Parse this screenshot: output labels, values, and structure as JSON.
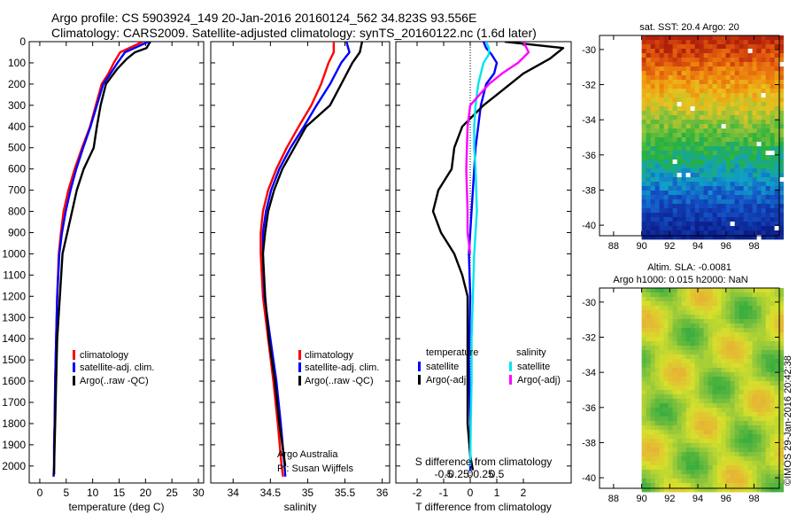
{
  "header": {
    "line1": "Argo profile: CS 5903924_149 20-Jan-2016 20160124_562 34.823S 93.556E",
    "line2": "Climatology: CARS2009. Satellite-adjusted climatology: synTS_20160122.nc (1.6d later)"
  },
  "credit": "©IMOS 29-Jan-2016 20:42:38",
  "colors": {
    "climatology": "#ff0000",
    "satellite": "#0000ff",
    "argo": "#000000",
    "satellite_salinity": "#00e5ee",
    "argo_salinity_diff": "#ff00ff"
  },
  "chart_data": [
    {
      "type": "line",
      "xlabel": "temperature (deg C)",
      "ylabel": "",
      "xlim": [
        -2,
        31
      ],
      "ylim": [
        2080,
        0
      ],
      "y_inverted": true,
      "xticks": [
        0,
        5,
        10,
        15,
        20,
        25,
        30
      ],
      "yticks": [
        0,
        100,
        200,
        300,
        400,
        500,
        600,
        700,
        800,
        900,
        1000,
        1100,
        1200,
        1300,
        1400,
        1500,
        1600,
        1700,
        1800,
        1900,
        2000
      ],
      "legend_position": "lower-center",
      "series": [
        {
          "name": "climatology",
          "color": "#ff0000",
          "x": [
            19.5,
            15.2,
            14.0,
            13.0,
            11.7,
            10.6,
            9.5,
            8.0,
            6.6,
            5.4,
            4.5,
            4.0,
            3.6,
            3.3,
            3.1,
            2.9,
            2.8,
            2.7,
            2.7,
            2.6
          ],
          "y": [
            0,
            50,
            100,
            150,
            200,
            300,
            400,
            500,
            600,
            700,
            800,
            900,
            1000,
            1200,
            1400,
            1600,
            1800,
            1900,
            2000,
            2050
          ]
        },
        {
          "name": "satellite-adj. clim.",
          "color": "#0000ff",
          "x": [
            20.6,
            16.1,
            14.7,
            13.4,
            12.0,
            10.8,
            9.6,
            8.2,
            6.9,
            5.8,
            4.9,
            4.2,
            3.7,
            3.3,
            3.1,
            2.9,
            2.8,
            2.7,
            2.7,
            2.6
          ],
          "y": [
            0,
            50,
            100,
            150,
            200,
            300,
            400,
            500,
            600,
            700,
            800,
            900,
            1000,
            1200,
            1400,
            1600,
            1800,
            1900,
            2000,
            2050
          ]
        },
        {
          "name": "Argo(..raw -QC)",
          "color": "#000000",
          "x": [
            20.9,
            20.2,
            18.0,
            16.5,
            14.6,
            12.5,
            11.5,
            10.8,
            10.2,
            8.3,
            7.0,
            6.1,
            5.2,
            4.3,
            3.8,
            3.3,
            3.1,
            2.9,
            2.8,
            2.7,
            2.7
          ],
          "y": [
            0,
            30,
            50,
            80,
            130,
            200,
            300,
            400,
            500,
            600,
            700,
            800,
            900,
            1000,
            1200,
            1400,
            1600,
            1800,
            1900,
            2000,
            2040
          ]
        }
      ]
    },
    {
      "type": "line",
      "xlabel": "salinity",
      "ylabel": "",
      "xlim": [
        33.7,
        36.1
      ],
      "ylim": [
        2080,
        0
      ],
      "y_inverted": true,
      "xticks": [
        34,
        34.5,
        35,
        35.5,
        36
      ],
      "yticks": [
        0,
        100,
        200,
        300,
        400,
        500,
        600,
        700,
        800,
        900,
        1000,
        1100,
        1200,
        1300,
        1400,
        1500,
        1600,
        1700,
        1800,
        1900,
        2000
      ],
      "legend_position": "lower-right",
      "annotation": [
        "Argo Australia",
        "PI: Susan Wijffels"
      ],
      "series": [
        {
          "name": "climatology",
          "color": "#ff0000",
          "x": [
            35.35,
            35.35,
            35.28,
            35.18,
            35.05,
            34.88,
            34.72,
            34.58,
            34.47,
            34.4,
            34.37,
            34.37,
            34.4,
            34.47,
            34.54,
            34.6,
            34.65,
            34.67
          ],
          "y": [
            0,
            50,
            100,
            200,
            300,
            400,
            500,
            600,
            700,
            800,
            900,
            1000,
            1200,
            1400,
            1600,
            1800,
            2000,
            2050
          ]
        },
        {
          "name": "satellite-adj. clim.",
          "color": "#0000ff",
          "x": [
            35.52,
            35.56,
            35.45,
            35.3,
            35.12,
            34.95,
            34.77,
            34.62,
            34.51,
            34.44,
            34.4,
            34.4,
            34.42,
            34.5,
            34.58,
            34.64,
            34.69,
            34.7
          ],
          "y": [
            0,
            50,
            100,
            200,
            300,
            400,
            500,
            600,
            700,
            800,
            900,
            1000,
            1200,
            1400,
            1600,
            1800,
            2000,
            2050
          ]
        },
        {
          "name": "Argo(..raw -QC)",
          "color": "#000000",
          "x": [
            35.73,
            35.7,
            35.6,
            35.45,
            35.3,
            34.98,
            34.82,
            34.66,
            34.55,
            34.47,
            34.43,
            34.4,
            34.43,
            34.48,
            34.56,
            34.62,
            34.68,
            34.7
          ],
          "y": [
            0,
            50,
            100,
            200,
            300,
            400,
            500,
            600,
            700,
            800,
            900,
            1000,
            1200,
            1400,
            1600,
            1800,
            1950,
            2000
          ]
        }
      ]
    },
    {
      "type": "line",
      "xlabel": "T difference from climatology",
      "ylabel": "",
      "secondary_xlabel": "S difference from climatology",
      "xlim": [
        -2.8,
        3.8
      ],
      "ylim": [
        2080,
        0
      ],
      "y_inverted": true,
      "xticks": [
        -2,
        -1,
        0,
        1,
        2
      ],
      "secondary_xticks": [
        -0.5,
        -0.25,
        0,
        0.25,
        0.5
      ],
      "yticks": [
        0,
        100,
        200,
        300,
        400,
        500,
        600,
        700,
        800,
        900,
        1000,
        1100,
        1200,
        1300,
        1400,
        1500,
        1600,
        1700,
        1800,
        1900,
        2000
      ],
      "legend_position": "lower-center",
      "legend_groups": [
        {
          "title": "temperature",
          "entries": [
            "satellite",
            "Argo(-adj)"
          ]
        },
        {
          "title": "salinity",
          "entries": [
            "satellite",
            "Argo(-adj)"
          ]
        }
      ],
      "series": [
        {
          "name": "temperature satellite",
          "color": "#0000ff",
          "x": [
            0.5,
            0.6,
            0.8,
            1.0,
            0.9,
            0.6,
            0.4,
            0.3,
            0.2,
            0.15,
            0.1,
            0.05,
            0,
            -0.05,
            0,
            -0.05,
            0,
            0
          ],
          "y": [
            0,
            30,
            60,
            100,
            150,
            200,
            300,
            400,
            500,
            600,
            700,
            800,
            900,
            1000,
            1200,
            1500,
            1800,
            2020
          ]
        },
        {
          "name": "temperature Argo(-adj)",
          "color": "#000000",
          "x": [
            1.3,
            3.5,
            3.0,
            2.0,
            1.0,
            0.5,
            -0.3,
            -0.6,
            -0.7,
            -1.2,
            -1.4,
            -1.1,
            -0.6,
            -0.3,
            -0.1,
            -0.1,
            -0.1,
            -0.1,
            0,
            0.1
          ],
          "y": [
            0,
            30,
            80,
            150,
            250,
            300,
            400,
            500,
            600,
            700,
            800,
            900,
            1000,
            1100,
            1200,
            1400,
            1600,
            1800,
            1950,
            2020
          ]
        },
        {
          "name": "salinity satellite",
          "color": "#00e5ee",
          "x": [
            0.6,
            0.7,
            0.7,
            0.5,
            0.3,
            0.2,
            0.15,
            0.15,
            0.2,
            0.25,
            0.15,
            0.1,
            0.05,
            0.05,
            0.02,
            0
          ],
          "y": [
            0,
            30,
            60,
            100,
            200,
            300,
            400,
            500,
            600,
            800,
            1000,
            1200,
            1400,
            1600,
            1800,
            2000
          ]
        },
        {
          "name": "salinity Argo(-adj)",
          "color": "#ff00ff",
          "x": [
            2.0,
            2.2,
            1.8,
            1.2,
            0.7,
            0,
            -0.1,
            -0.15,
            -0.1,
            -0.1,
            0
          ],
          "y": [
            0,
            50,
            100,
            150,
            200,
            300,
            400,
            600,
            800,
            900,
            1000
          ]
        }
      ]
    },
    {
      "type": "heatmap",
      "title": "sat. SST: 20.4  Argo: 20",
      "xlim": [
        87,
        99.8
      ],
      "ylim": [
        -40.6,
        -29.2
      ],
      "xticks": [
        88,
        90,
        92,
        94,
        96,
        98
      ],
      "yticks": [
        -30,
        -32,
        -34,
        -36,
        -38,
        -40
      ],
      "data_x_range": [
        90,
        99.8
      ],
      "colormap": [
        "#b0200a",
        "#e35a0e",
        "#ef9910",
        "#e8c420",
        "#8ec23a",
        "#27b23d",
        "#10a0c8",
        "#1550c6",
        "#0b1e8c"
      ],
      "colormap_latitudes": [
        -29.2,
        -30.5,
        -31.7,
        -32.8,
        -34.0,
        -35.5,
        -37.0,
        -38.5,
        -40.6
      ]
    },
    {
      "type": "heatmap",
      "title": "Altim. SLA: -0.0081",
      "subtitle": "Argo h1000: 0.015 h2000: NaN",
      "xlim": [
        87,
        99.8
      ],
      "ylim": [
        -40.6,
        -29.2
      ],
      "xticks": [
        88,
        90,
        92,
        94,
        96,
        98
      ],
      "yticks": [
        -30,
        -32,
        -34,
        -36,
        -38,
        -40
      ],
      "data_x_range": [
        90,
        99.8
      ],
      "colormap": [
        "#3cae3f",
        "#8ec63c",
        "#d7e02c",
        "#e6b434"
      ]
    }
  ]
}
